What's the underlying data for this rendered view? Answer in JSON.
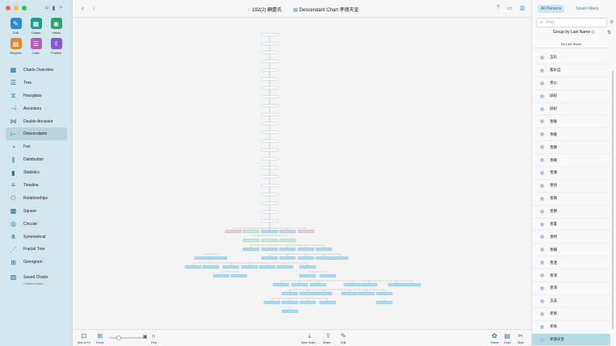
{
  "sidebar": {
    "grid": [
      {
        "label": "Edit",
        "icon": "pencil-icon",
        "color": "#2f8ad0"
      },
      {
        "label": "Charts",
        "icon": "charts-icon",
        "color": "#1f9a8c"
      },
      {
        "label": "Views",
        "icon": "eye-icon",
        "color": "#2aa36b"
      },
      {
        "label": "Reports",
        "icon": "reports-icon",
        "color": "#e08a2c"
      },
      {
        "label": "Lists",
        "icon": "lists-icon",
        "color": "#b55ab8"
      },
      {
        "label": "Publish",
        "icon": "publish-icon",
        "color": "#8757d6"
      }
    ],
    "items": [
      {
        "label": "Charts Overview",
        "icon": "grid-icon",
        "glyph": "▦"
      },
      {
        "label": "Tree",
        "icon": "tree-icon",
        "glyph": "☰"
      },
      {
        "label": "Hourglass",
        "icon": "hourglass-icon",
        "glyph": "⧖"
      },
      {
        "label": "Ancestors",
        "icon": "ancestors-icon",
        "glyph": "⊣"
      },
      {
        "label": "Double Ancestor",
        "icon": "double-ancestor-icon",
        "glyph": "⋈"
      },
      {
        "label": "Descendants",
        "icon": "descendants-icon",
        "glyph": "⊢",
        "active": true
      },
      {
        "label": "Fan",
        "icon": "fan-icon",
        "glyph": "◔"
      },
      {
        "label": "Distribution",
        "icon": "distribution-icon",
        "glyph": "⫼"
      },
      {
        "label": "Statistics",
        "icon": "statistics-icon",
        "glyph": "▮"
      },
      {
        "label": "Timeline",
        "icon": "timeline-icon",
        "glyph": "≡"
      },
      {
        "label": "Relationships",
        "icon": "relationships-icon",
        "glyph": "⚇"
      },
      {
        "label": "Square",
        "icon": "square-icon",
        "glyph": "▩"
      },
      {
        "label": "Circular",
        "icon": "circular-icon",
        "glyph": "◎"
      },
      {
        "label": "Symmetrical",
        "icon": "symmetrical-icon",
        "glyph": "⋔"
      },
      {
        "label": "Fractal Tree",
        "icon": "fractal-tree-icon",
        "glyph": "⋰"
      },
      {
        "label": "Genogram",
        "icon": "genogram-icon",
        "glyph": "⊞"
      }
    ],
    "saved": {
      "label": "Saved Charts",
      "sub": "0 Saved Charts",
      "icon": "saved-charts-icon"
    }
  },
  "topbar": {
    "back_icon": "chevron-left-icon",
    "forward_icon": "chevron-right-icon",
    "person": "192(2) 顧慶氏",
    "chart_title": "Descendant Chart 孝德天皇"
  },
  "bottombar": {
    "size_to_fit": "Size to Fit",
    "focus": "Focus",
    "find": "Find",
    "share_chart": "Save Chart…",
    "share": "Share…",
    "edit": "Edit",
    "theme": "Theme",
    "chart": "Chart",
    "style": "Style"
  },
  "rpanel": {
    "all_persons": "All Persons",
    "smart_filters": "Smart Filters",
    "search_placeholder": "Find",
    "group_by": "Group by Last Name ◇",
    "list_header": "No Last Name",
    "persons": [
      "玉彩",
      "都牟自",
      "善以",
      "屏紀",
      "屏紀",
      "善繼",
      "善繼",
      "善顯",
      "善繼",
      "善蓮",
      "善悟",
      "善興",
      "善爵",
      "善置",
      "善特",
      "善輔",
      "善連",
      "善演",
      "善演",
      "玉美",
      "孝爽",
      "孝爽",
      "孝德天皇"
    ],
    "selected_index": 22
  },
  "colors": {
    "accent": "#2d82b4",
    "node_blue": "#a8daf0",
    "node_pink": "#f3c9d6",
    "node_green": "#c7ecd2",
    "node_purple": "#d6c7ef",
    "node_plain": "#ffffff"
  }
}
